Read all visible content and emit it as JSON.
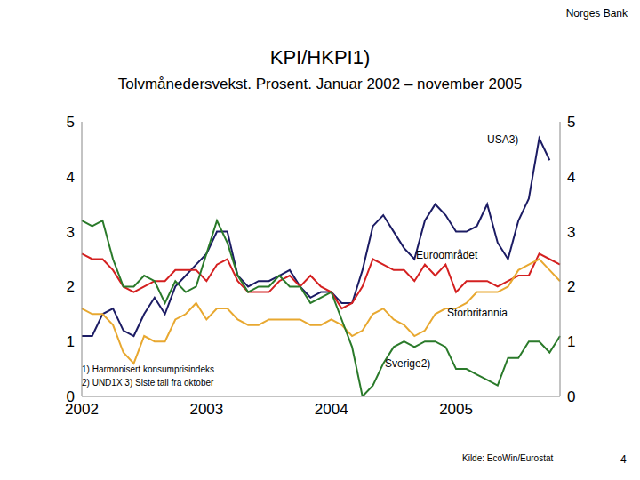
{
  "chart_data": {
    "type": "line",
    "header": "Norges Bank",
    "title": "KPI/HKPI1)",
    "subtitle": "Tolvmånedersvekst. Prosent. Januar 2002 – november 2005",
    "footnotes": [
      "1) Harmonisert konsumprisindeks",
      "2) UND1X   3) Siste tall fra oktober"
    ],
    "source": "Kilde: EcoWin/Eurostat",
    "page": "4",
    "categories": [
      "2002",
      null,
      null,
      null,
      null,
      null,
      null,
      null,
      null,
      null,
      null,
      null,
      "2003",
      null,
      null,
      null,
      null,
      null,
      null,
      null,
      null,
      null,
      null,
      null,
      "2004",
      null,
      null,
      null,
      null,
      null,
      null,
      null,
      null,
      null,
      null,
      null,
      "2005",
      null,
      null,
      null,
      null,
      null,
      null,
      null,
      null,
      null,
      null
    ],
    "ylim": [
      0,
      5
    ],
    "yticks": [
      0,
      1,
      2,
      3,
      4,
      5
    ],
    "grid": false,
    "series": [
      {
        "name": "USA3)",
        "color": "#1c1c64",
        "values": [
          1.1,
          1.1,
          1.5,
          1.6,
          1.2,
          1.1,
          1.5,
          1.8,
          1.5,
          2.0,
          2.2,
          2.4,
          2.6,
          3.0,
          3.0,
          2.2,
          2.0,
          2.1,
          2.1,
          2.2,
          2.3,
          2.0,
          1.8,
          1.9,
          1.9,
          1.7,
          1.7,
          2.3,
          3.1,
          3.3,
          3.0,
          2.7,
          2.5,
          3.2,
          3.5,
          3.3,
          3.0,
          3.0,
          3.1,
          3.5,
          2.8,
          2.5,
          3.2,
          3.6,
          4.7,
          4.3,
          null
        ]
      },
      {
        "name": "Euroområdet",
        "color": "#d42020",
        "values": [
          2.6,
          2.5,
          2.5,
          2.3,
          2.0,
          1.9,
          2.0,
          2.1,
          2.1,
          2.3,
          2.3,
          2.3,
          2.1,
          2.4,
          2.5,
          2.1,
          1.9,
          1.9,
          1.9,
          2.1,
          2.2,
          2.0,
          2.2,
          2.0,
          1.9,
          1.6,
          1.7,
          2.0,
          2.5,
          2.4,
          2.3,
          2.3,
          2.1,
          2.4,
          2.2,
          2.4,
          1.9,
          2.1,
          2.1,
          2.1,
          2.0,
          2.1,
          2.2,
          2.2,
          2.6,
          2.5,
          2.4
        ]
      },
      {
        "name": "Storbritannia",
        "color": "#e8a830",
        "values": [
          1.6,
          1.5,
          1.5,
          1.3,
          0.8,
          0.6,
          1.1,
          1.0,
          1.0,
          1.4,
          1.5,
          1.7,
          1.4,
          1.6,
          1.6,
          1.4,
          1.3,
          1.3,
          1.4,
          1.4,
          1.4,
          1.4,
          1.3,
          1.3,
          1.4,
          1.3,
          1.1,
          1.2,
          1.5,
          1.6,
          1.4,
          1.3,
          1.1,
          1.2,
          1.5,
          1.6,
          1.6,
          1.7,
          1.9,
          1.9,
          1.9,
          2.0,
          2.3,
          2.4,
          2.5,
          2.3,
          2.1
        ]
      },
      {
        "name": "Sverige2)",
        "color": "#2a7a2a",
        "values": [
          3.2,
          3.1,
          3.2,
          2.5,
          2.0,
          2.0,
          2.2,
          2.1,
          1.7,
          2.1,
          1.9,
          2.0,
          2.6,
          3.2,
          2.8,
          2.2,
          1.9,
          2.0,
          2.0,
          2.2,
          2.0,
          2.0,
          1.7,
          1.8,
          1.9,
          1.4,
          0.9,
          0.0,
          0.2,
          0.6,
          0.9,
          1.0,
          0.9,
          1.0,
          1.0,
          0.9,
          0.5,
          0.5,
          0.4,
          0.3,
          0.2,
          0.7,
          0.7,
          1.0,
          1.0,
          0.8,
          1.1
        ]
      }
    ]
  }
}
